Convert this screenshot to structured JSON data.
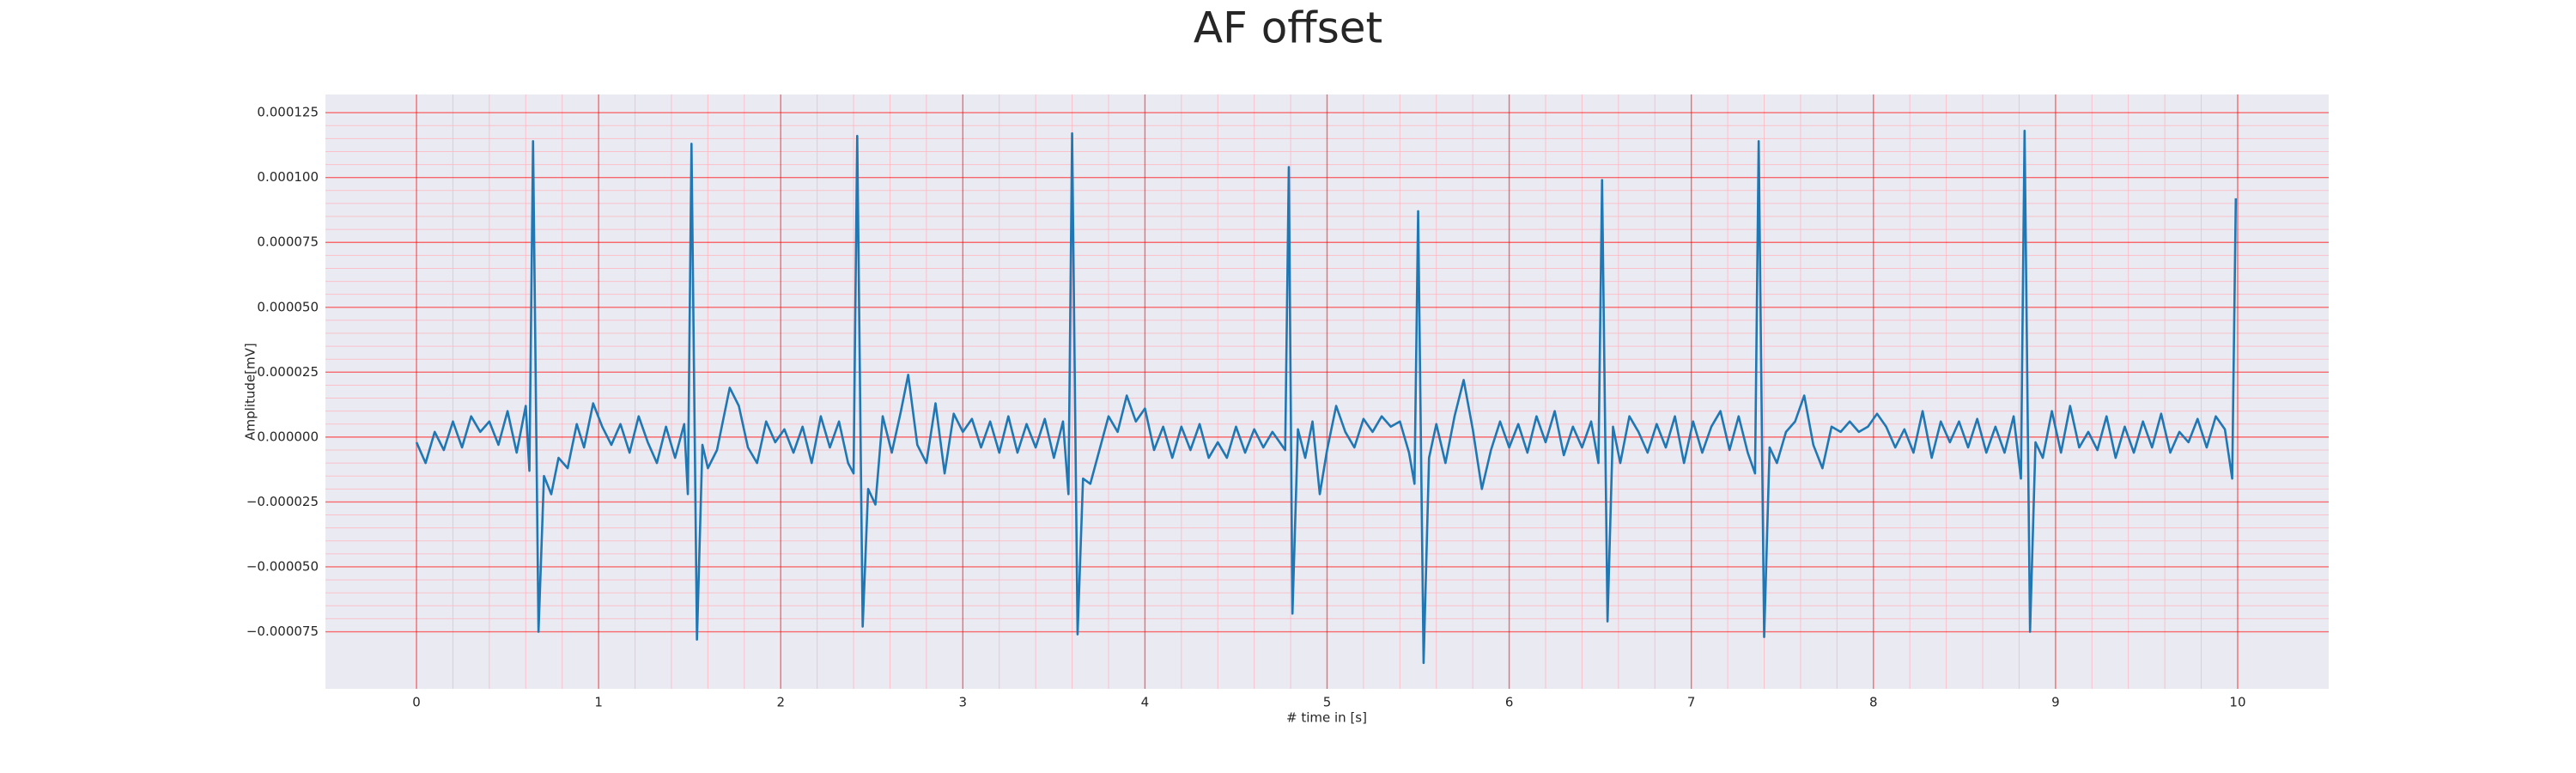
{
  "chart_data": {
    "type": "line",
    "title": "AF offset",
    "xlabel": "# time in [s]",
    "ylabel": "Amplitude[mV]",
    "color": "#1f77b4",
    "grid": true,
    "minor_grid": true,
    "xlim": [
      -0.5,
      10.5
    ],
    "ylim": [
      -9.7e-05,
      0.000132
    ],
    "xticks": [
      0,
      1,
      2,
      3,
      4,
      5,
      6,
      7,
      8,
      9,
      10
    ],
    "yticks": [
      {
        "value": -7.5e-05,
        "label": "−0.000075"
      },
      {
        "value": -5e-05,
        "label": "−0.000050"
      },
      {
        "value": -2.5e-05,
        "label": "−0.000025"
      },
      {
        "value": 0,
        "label": "0.000000"
      },
      {
        "value": 2.5e-05,
        "label": "0.000025"
      },
      {
        "value": 5e-05,
        "label": "0.000050"
      },
      {
        "value": 7.5e-05,
        "label": "0.000075"
      },
      {
        "value": 0.0001,
        "label": "0.000100"
      },
      {
        "value": 0.000125,
        "label": "0.000125"
      }
    ],
    "x": [
      0.0,
      0.05,
      0.1,
      0.15,
      0.2,
      0.25,
      0.3,
      0.35,
      0.4,
      0.45,
      0.5,
      0.55,
      0.6,
      0.62,
      0.64,
      0.67,
      0.7,
      0.74,
      0.78,
      0.83,
      0.88,
      0.92,
      0.97,
      1.02,
      1.07,
      1.12,
      1.17,
      1.22,
      1.27,
      1.32,
      1.37,
      1.42,
      1.47,
      1.49,
      1.51,
      1.54,
      1.57,
      1.6,
      1.65,
      1.72,
      1.77,
      1.82,
      1.87,
      1.92,
      1.97,
      2.02,
      2.07,
      2.12,
      2.17,
      2.22,
      2.27,
      2.32,
      2.37,
      2.4,
      2.42,
      2.45,
      2.48,
      2.52,
      2.56,
      2.61,
      2.66,
      2.7,
      2.75,
      2.8,
      2.85,
      2.9,
      2.95,
      3.0,
      3.05,
      3.1,
      3.15,
      3.2,
      3.25,
      3.3,
      3.35,
      3.4,
      3.45,
      3.5,
      3.55,
      3.58,
      3.6,
      3.63,
      3.66,
      3.7,
      3.75,
      3.8,
      3.85,
      3.9,
      3.95,
      4.0,
      4.05,
      4.1,
      4.15,
      4.2,
      4.25,
      4.3,
      4.35,
      4.4,
      4.45,
      4.5,
      4.55,
      4.6,
      4.65,
      4.7,
      4.75,
      4.77,
      4.79,
      4.81,
      4.84,
      4.88,
      4.92,
      4.96,
      5.0,
      5.05,
      5.1,
      5.15,
      5.2,
      5.25,
      5.3,
      5.35,
      5.4,
      5.45,
      5.48,
      5.5,
      5.53,
      5.56,
      5.6,
      5.65,
      5.7,
      5.75,
      5.8,
      5.85,
      5.9,
      5.95,
      6.0,
      6.05,
      6.1,
      6.15,
      6.2,
      6.25,
      6.3,
      6.35,
      6.4,
      6.45,
      6.49,
      6.51,
      6.54,
      6.57,
      6.61,
      6.66,
      6.71,
      6.76,
      6.81,
      6.86,
      6.91,
      6.96,
      7.01,
      7.06,
      7.11,
      7.16,
      7.21,
      7.26,
      7.31,
      7.35,
      7.37,
      7.4,
      7.43,
      7.47,
      7.52,
      7.57,
      7.62,
      7.67,
      7.72,
      7.77,
      7.82,
      7.87,
      7.92,
      7.97,
      8.02,
      8.07,
      8.12,
      8.17,
      8.22,
      8.27,
      8.32,
      8.37,
      8.42,
      8.47,
      8.52,
      8.57,
      8.62,
      8.67,
      8.72,
      8.77,
      8.81,
      8.83,
      8.86,
      8.89,
      8.93,
      8.98,
      9.03,
      9.08,
      9.13,
      9.18,
      9.23,
      9.28,
      9.33,
      9.38,
      9.43,
      9.48,
      9.53,
      9.58,
      9.63,
      9.68,
      9.73,
      9.78,
      9.83,
      9.88,
      9.93,
      9.97,
      9.99
    ],
    "values": [
      -2e-06,
      -1e-05,
      2e-06,
      -5e-06,
      6e-06,
      -4e-06,
      8e-06,
      2e-06,
      6e-06,
      -3e-06,
      1e-05,
      -6e-06,
      1.2e-05,
      -1.3e-05,
      0.000114,
      -7.5e-05,
      -1.5e-05,
      -2.2e-05,
      -8e-06,
      -1.2e-05,
      5e-06,
      -4e-06,
      1.3e-05,
      4e-06,
      -3e-06,
      5e-06,
      -6e-06,
      8e-06,
      -2e-06,
      -1e-05,
      4e-06,
      -8e-06,
      5e-06,
      -2.2e-05,
      0.000113,
      -7.8e-05,
      -3e-06,
      -1.2e-05,
      -5e-06,
      1.9e-05,
      1.2e-05,
      -4e-06,
      -1e-05,
      6e-06,
      -2e-06,
      3e-06,
      -6e-06,
      4e-06,
      -1e-05,
      8e-06,
      -4e-06,
      6e-06,
      -1e-05,
      -1.4e-05,
      0.000116,
      -7.3e-05,
      -2e-05,
      -2.6e-05,
      8e-06,
      -6e-06,
      1e-05,
      2.4e-05,
      -3e-06,
      -1e-05,
      1.3e-05,
      -1.4e-05,
      9e-06,
      2e-06,
      7e-06,
      -4e-06,
      6e-06,
      -6e-06,
      8e-06,
      -6e-06,
      5e-06,
      -4e-06,
      7e-06,
      -8e-06,
      6e-06,
      -2.2e-05,
      0.000117,
      -7.6e-05,
      -1.6e-05,
      -1.8e-05,
      -5e-06,
      8e-06,
      2e-06,
      1.6e-05,
      6e-06,
      1.1e-05,
      -5e-06,
      4e-06,
      -8e-06,
      4e-06,
      -5e-06,
      5e-06,
      -8e-06,
      -2e-06,
      -8e-06,
      4e-06,
      -6e-06,
      3e-06,
      -4e-06,
      2e-06,
      -3e-06,
      -5e-06,
      0.000104,
      -6.8e-05,
      3e-06,
      -8e-06,
      6e-06,
      -2.2e-05,
      -5e-06,
      1.2e-05,
      2e-06,
      -4e-06,
      7e-06,
      2e-06,
      8e-06,
      4e-06,
      6e-06,
      -6e-06,
      -1.8e-05,
      8.7e-05,
      -8.7e-05,
      -8e-06,
      5e-06,
      -1e-05,
      8e-06,
      2.2e-05,
      3e-06,
      -2e-05,
      -5e-06,
      6e-06,
      -4e-06,
      5e-06,
      -6e-06,
      8e-06,
      -2e-06,
      1e-05,
      -7e-06,
      4e-06,
      -4e-06,
      6e-06,
      -1e-05,
      9.9e-05,
      -7.1e-05,
      4e-06,
      -1e-05,
      8e-06,
      2e-06,
      -6e-06,
      5e-06,
      -4e-06,
      8e-06,
      -1e-05,
      6e-06,
      -6e-06,
      4e-06,
      1e-05,
      -5e-06,
      8e-06,
      -6e-06,
      -1.4e-05,
      0.000114,
      -7.7e-05,
      -4e-06,
      -1e-05,
      2e-06,
      6e-06,
      1.6e-05,
      -3e-06,
      -1.2e-05,
      4e-06,
      2e-06,
      6e-06,
      2e-06,
      4e-06,
      9e-06,
      4e-06,
      -4e-06,
      3e-06,
      -6e-06,
      1e-05,
      -8e-06,
      6e-06,
      -2e-06,
      6e-06,
      -4e-06,
      7e-06,
      -6e-06,
      4e-06,
      -6e-06,
      8e-06,
      -1.6e-05,
      0.000118,
      -7.5e-05,
      -2e-06,
      -8e-06,
      1e-05,
      -6e-06,
      1.2e-05,
      -4e-06,
      2e-06,
      -5e-06,
      8e-06,
      -8e-06,
      4e-06,
      -6e-06,
      6e-06,
      -4e-06,
      9e-06,
      -6e-06,
      2e-06,
      -2e-06,
      7e-06,
      -4e-06,
      8e-06,
      3e-06,
      -1.6e-05,
      9.2e-05
    ]
  }
}
